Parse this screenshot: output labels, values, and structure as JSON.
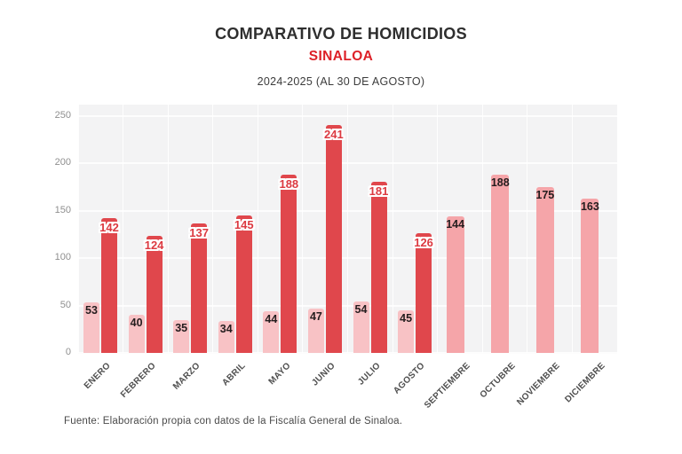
{
  "header": {
    "title": "COMPARATIVO DE HOMICIDIOS",
    "subtitle": "SINALOA",
    "period": "2024-2025 (AL 30 DE AGOSTO)"
  },
  "footer": {
    "source": "Fuente: Elaboración propia con datos de la Fiscalía General de Sinaloa."
  },
  "chart_data": {
    "type": "bar",
    "title": "COMPARATIVO DE HOMICIDIOS",
    "subtitle": "SINALOA",
    "period_note": "2024-2025 (AL 30 DE AGOSTO)",
    "categories": [
      "ENERO",
      "FEBRERO",
      "MARZO",
      "ABRIL",
      "MAYO",
      "JUNIO",
      "JULIO",
      "AGOSTO",
      "SEPTIEMBRE",
      "OCTUBRE",
      "NOVIEMBRE",
      "DICIEMBRE"
    ],
    "series": [
      {
        "name": "2024",
        "values": [
          53,
          40,
          35,
          34,
          44,
          47,
          54,
          45,
          144,
          188,
          175,
          163
        ],
        "color_paired": "#f8c2c5",
        "color_single": "#f5a5a9",
        "label_color": "#241d1e"
      },
      {
        "name": "2025",
        "values": [
          142,
          124,
          137,
          145,
          188,
          241,
          181,
          126,
          null,
          null,
          null,
          null
        ],
        "color": "#e0474c",
        "label_color": "#dc3a41",
        "label_outline": "#ffffff"
      }
    ],
    "ylim": [
      0,
      250
    ],
    "yticks": [
      0,
      50,
      100,
      150,
      200,
      250
    ],
    "grid": true,
    "legend": "none",
    "plot_background": "#f3f3f4",
    "gridline_color": "#fdfdfd"
  }
}
